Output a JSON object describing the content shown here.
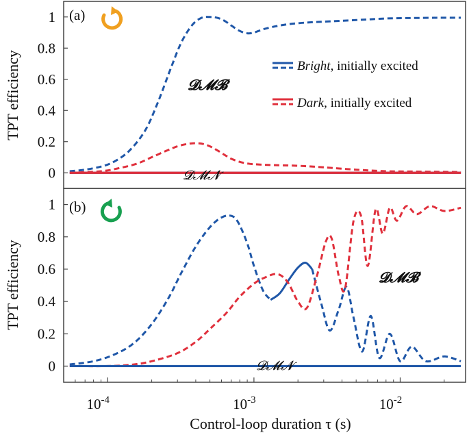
{
  "colors": {
    "bright": "#1f57a8",
    "dark": "#e0303c",
    "cw_arrow": "#f0a020",
    "ccw_arrow": "#18a050",
    "frame": "#444444"
  },
  "chart_data": [
    {
      "type": "line",
      "panel": "(a)",
      "rotation_icon": "clockwise-arrow-icon",
      "xscale": "log",
      "xlim": [
        5e-05,
        0.028
      ],
      "ylim": [
        -0.1,
        1.1
      ],
      "yticks": [
        0,
        0.2,
        0.4,
        0.6,
        0.8,
        1
      ],
      "ytick_labels": [
        "0",
        "0.2",
        "0.4",
        "0.6",
        "0.8",
        "1"
      ],
      "ylabel": "TPT efficiency",
      "annotations": {
        "upper": "𝓓𝓜𝓑",
        "lower": "𝓓𝓜𝓝"
      },
      "legend": {
        "position": "right",
        "entries": [
          {
            "name_italic": "Bright",
            "name_rest": ", initially excited",
            "style": "solid+dashed",
            "color": "#1f57a8"
          },
          {
            "name_italic": "Dark",
            "name_rest": ", initially excited",
            "style": "solid+dashed",
            "color": "#e0303c"
          }
        ]
      },
      "series": [
        {
          "name": "Bright DMB",
          "color": "#1f57a8",
          "dash": true,
          "x": [
            5.5e-05,
            7e-05,
            9e-05,
            0.00011,
            0.00014,
            0.00018,
            0.00022,
            0.00027,
            0.00032,
            0.00038,
            0.00044,
            0.0005,
            0.00056,
            0.00063,
            0.0007,
            0.0008,
            0.0009,
            0.001,
            0.0012,
            0.0015,
            0.002,
            0.003,
            0.005,
            0.008,
            0.012,
            0.018,
            0.026
          ],
          "y": [
            0.01,
            0.02,
            0.04,
            0.07,
            0.14,
            0.27,
            0.45,
            0.67,
            0.84,
            0.95,
            0.995,
            1.0,
            0.995,
            0.975,
            0.945,
            0.91,
            0.895,
            0.9,
            0.925,
            0.945,
            0.96,
            0.97,
            0.98,
            0.99,
            0.993,
            0.995,
            0.995
          ]
        },
        {
          "name": "Dark DMB",
          "color": "#e0303c",
          "dash": true,
          "x": [
            5.5e-05,
            9e-05,
            0.00012,
            0.00016,
            0.0002,
            0.00025,
            0.0003,
            0.00035,
            0.0004,
            0.00045,
            0.0005,
            0.00056,
            0.00063,
            0.0007,
            0.0008,
            0.0009,
            0.001,
            0.0013,
            0.002,
            0.003,
            0.005,
            0.008,
            0.012,
            0.02,
            0.026
          ],
          "y": [
            0.0,
            0.01,
            0.03,
            0.06,
            0.1,
            0.14,
            0.17,
            0.185,
            0.19,
            0.185,
            0.17,
            0.145,
            0.115,
            0.09,
            0.07,
            0.06,
            0.055,
            0.05,
            0.045,
            0.035,
            0.02,
            0.01,
            0.008,
            0.006,
            0.005
          ]
        },
        {
          "name": "Bright DMN",
          "color": "#1f57a8",
          "dash": false,
          "x": [
            5.5e-05,
            0.026
          ],
          "y": [
            0.0,
            0.0
          ]
        },
        {
          "name": "Dark DMN",
          "color": "#e0303c",
          "dash": false,
          "x": [
            5.5e-05,
            0.026
          ],
          "y": [
            0.0,
            0.0
          ]
        }
      ]
    },
    {
      "type": "line",
      "panel": "(b)",
      "rotation_icon": "counterclockwise-arrow-icon",
      "xscale": "log",
      "xlim": [
        5e-05,
        0.028
      ],
      "ylim": [
        -0.1,
        1.1
      ],
      "yticks": [
        0,
        0.2,
        0.4,
        0.6,
        0.8,
        1
      ],
      "ytick_labels": [
        "0",
        "0.2",
        "0.4",
        "0.6",
        "0.8",
        "1"
      ],
      "ylabel": "TPT efficiency",
      "xlabel": "Control-loop duration τ (s)",
      "xticks": [
        0.0001,
        0.001,
        0.01
      ],
      "xtick_labels": [
        {
          "base": "10",
          "exp": "-4"
        },
        {
          "base": "10",
          "exp": "-3"
        },
        {
          "base": "10",
          "exp": "-2"
        }
      ],
      "annotations": {
        "upper": "𝓓𝓜𝓑",
        "lower": "𝓓𝓜𝓝"
      },
      "series": [
        {
          "name": "Bright DMB",
          "color": "#1f57a8",
          "dash": true,
          "x": [
            5.5e-05,
            8e-05,
            0.00011,
            0.00015,
            0.0002,
            0.00026,
            0.00032,
            0.0004,
            0.0005,
            0.0006,
            0.0007,
            0.00078,
            0.0009,
            0.001,
            0.00115,
            0.0013
          ],
          "y": [
            0.01,
            0.03,
            0.07,
            0.14,
            0.26,
            0.42,
            0.58,
            0.74,
            0.86,
            0.92,
            0.93,
            0.89,
            0.76,
            0.62,
            0.47,
            0.41
          ]
        },
        {
          "name": "Bright DMN-like tail",
          "color": "#1f57a8",
          "dash": false,
          "x": [
            0.0013,
            0.0015,
            0.00175,
            0.002,
            0.00225,
            0.0025
          ],
          "y": [
            0.41,
            0.45,
            0.54,
            0.61,
            0.64,
            0.6
          ]
        },
        {
          "name": "Bright oscillation",
          "color": "#1f57a8",
          "dash": true,
          "osc": true,
          "x": [
            0.0025,
            0.0029,
            0.0033,
            0.0038,
            0.0043,
            0.0048,
            0.0055,
            0.0063,
            0.0072,
            0.0085,
            0.01,
            0.012,
            0.015,
            0.02,
            0.026
          ],
          "y": [
            0.6,
            0.38,
            0.22,
            0.35,
            0.49,
            0.3,
            0.09,
            0.31,
            0.05,
            0.2,
            0.03,
            0.12,
            0.03,
            0.06,
            0.03
          ]
        },
        {
          "name": "Dark DMB",
          "color": "#e0303c",
          "dash": true,
          "x": [
            5.5e-05,
            0.0001,
            0.00015,
            0.0002,
            0.0003,
            0.0004,
            0.0005,
            0.00065,
            0.0008,
            0.001,
            0.0012,
            0.00145,
            0.0017,
            0.002,
            0.0023,
            0.0027,
            0.0031,
            0.0034,
            0.0038,
            0.0042,
            0.0048,
            0.0054,
            0.006,
            0.0068,
            0.0076,
            0.0085,
            0.0095,
            0.011,
            0.013,
            0.016,
            0.02,
            0.026
          ],
          "y": [
            0.0,
            0.0,
            0.01,
            0.03,
            0.08,
            0.15,
            0.23,
            0.33,
            0.43,
            0.51,
            0.55,
            0.57,
            0.52,
            0.4,
            0.36,
            0.56,
            0.77,
            0.79,
            0.56,
            0.48,
            0.9,
            0.93,
            0.62,
            0.97,
            0.82,
            0.98,
            0.9,
            0.99,
            0.94,
            0.99,
            0.96,
            0.98
          ]
        },
        {
          "name": "Bright DMN",
          "color": "#1f57a8",
          "dash": false,
          "x": [
            5.5e-05,
            0.026
          ],
          "y": [
            0.0,
            0.0
          ]
        }
      ]
    }
  ]
}
